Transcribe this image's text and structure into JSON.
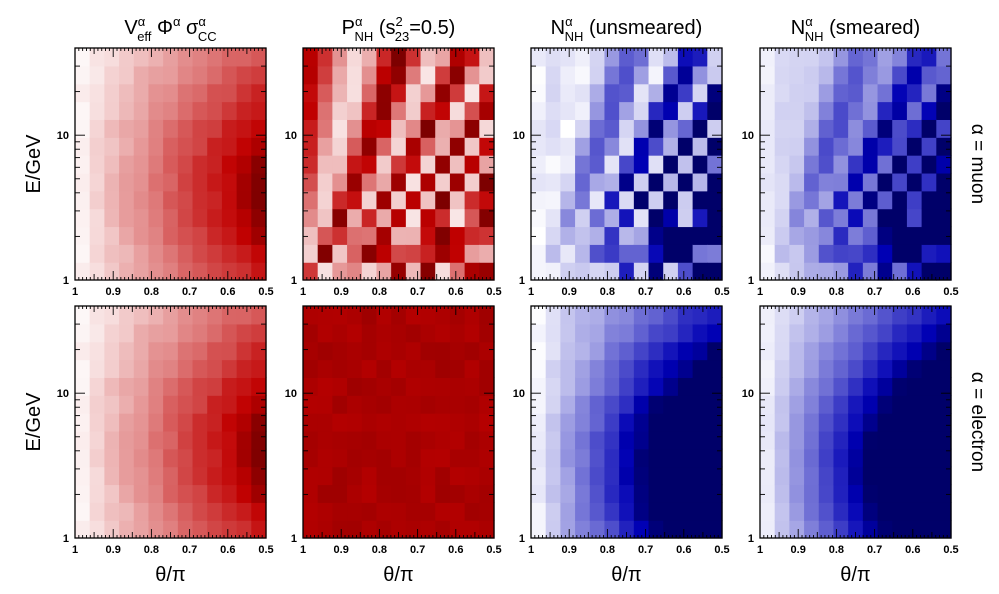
{
  "chart_data": {
    "type": "heatmap",
    "layout": {
      "rows": 2,
      "columns": 4
    },
    "column_titles": [
      {
        "parts": [
          {
            "t": "V",
            "s": "n"
          },
          {
            "t": "α",
            "s": "sup"
          },
          {
            "t": "eff",
            "s": "sub"
          },
          {
            "t": " Φ",
            "s": "n"
          },
          {
            "t": "α",
            "s": "sup"
          },
          {
            "t": " σ",
            "s": "n"
          },
          {
            "t": "α",
            "s": "sup"
          },
          {
            "t": "CC",
            "s": "sub"
          }
        ]
      },
      {
        "parts": [
          {
            "t": "P",
            "s": "n"
          },
          {
            "t": "α",
            "s": "sup"
          },
          {
            "t": "NH",
            "s": "sub"
          },
          {
            "t": " (s",
            "s": "n"
          },
          {
            "t": "2",
            "s": "sup"
          },
          {
            "t": "23",
            "s": "sub"
          },
          {
            "t": "=0.5)",
            "s": "n"
          }
        ]
      },
      {
        "parts": [
          {
            "t": "N",
            "s": "n"
          },
          {
            "t": "α",
            "s": "sup"
          },
          {
            "t": "NH",
            "s": "sub"
          },
          {
            "t": " (unsmeared)",
            "s": "n"
          }
        ]
      },
      {
        "parts": [
          {
            "t": "N",
            "s": "n"
          },
          {
            "t": "α",
            "s": "sup"
          },
          {
            "t": "NH",
            "s": "sub"
          },
          {
            "t": " (smeared)",
            "s": "n"
          }
        ]
      }
    ],
    "row_labels": [
      "α = muon",
      "α = electron"
    ],
    "xlabel": "θ/π",
    "ylabel": "E/GeV",
    "x_range": [
      1,
      0.5
    ],
    "y_range": [
      1,
      40
    ],
    "y_scale": "log",
    "x_ticks": [
      "1",
      "0.9",
      "0.8",
      "0.7",
      "0.6",
      "0.5"
    ],
    "y_ticks": [
      "1",
      "10"
    ],
    "grid_size": {
      "nx": 13,
      "ny": 13
    },
    "colors": {
      "red": "#c00000",
      "blue": "#0000b4",
      "low": "#ffffff"
    },
    "panels": [
      {
        "row": 0,
        "col": 0,
        "scheme": "red",
        "model": "flux"
      },
      {
        "row": 0,
        "col": 1,
        "scheme": "red",
        "model": "osc_muon"
      },
      {
        "row": 0,
        "col": 2,
        "scheme": "blue",
        "model": "events_muon_unsmeared"
      },
      {
        "row": 0,
        "col": 3,
        "scheme": "blue",
        "model": "events_muon_smeared"
      },
      {
        "row": 1,
        "col": 0,
        "scheme": "red",
        "model": "flux"
      },
      {
        "row": 1,
        "col": 1,
        "scheme": "red",
        "model": "osc_electron"
      },
      {
        "row": 1,
        "col": 2,
        "scheme": "blue",
        "model": "events_electron_unsmeared"
      },
      {
        "row": 1,
        "col": 3,
        "scheme": "blue",
        "model": "events_electron_smeared"
      }
    ]
  }
}
